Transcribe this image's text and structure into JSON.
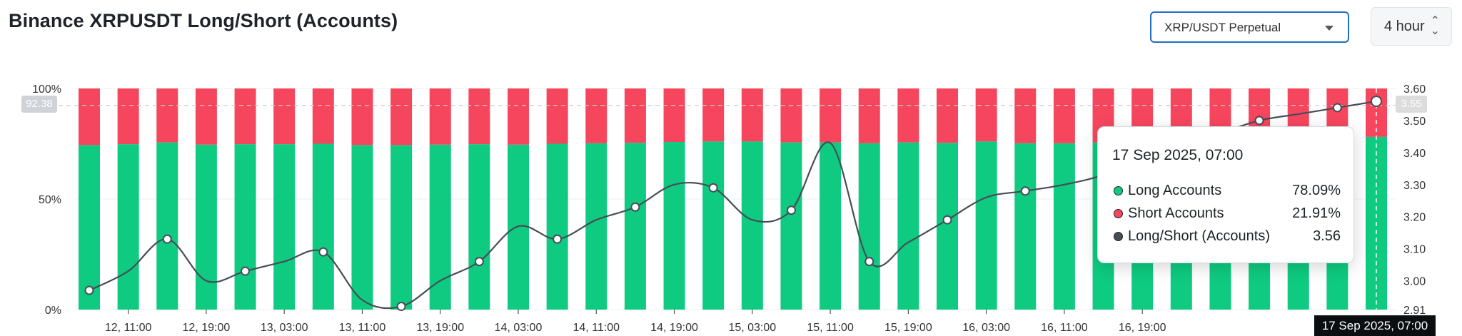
{
  "header": {
    "title": "Binance XRPUSDT Long/Short (Accounts)",
    "contract_select": "XRP/USDT Perpetual",
    "interval_select": "4 hour"
  },
  "colors": {
    "long": "#0ecb81",
    "short": "#f6465d",
    "ratio_line": "#474d57",
    "accent": "#1f6fbf"
  },
  "chart_data": {
    "type": "bar",
    "title": "Binance XRPUSDT Long/Short (Accounts)",
    "stacked": true,
    "left_axis": {
      "ticks": [
        "0%",
        "50%",
        "100%"
      ],
      "range": [
        0,
        100
      ]
    },
    "right_axis": {
      "ticks": [
        "2.91",
        "3.00",
        "3.10",
        "3.20",
        "3.30",
        "3.40",
        "3.50",
        "3.60"
      ],
      "range": [
        2.91,
        3.6
      ]
    },
    "x_tick_labels": [
      "12, 11:00",
      "12, 19:00",
      "13, 03:00",
      "13, 11:00",
      "13, 19:00",
      "14, 03:00",
      "14, 11:00",
      "14, 19:00",
      "15, 03:00",
      "15, 11:00",
      "15, 19:00",
      "16, 03:00",
      "16, 11:00",
      "16, 19:00",
      "17 Sep 2025, 07:00"
    ],
    "series": [
      {
        "name": "Long Accounts",
        "values": [
          74.4,
          74.8,
          75.6,
          74.6,
          74.8,
          74.8,
          75.0,
          74.4,
          74.4,
          74.6,
          74.8,
          74.6,
          75.0,
          75.2,
          75.4,
          75.8,
          76.0,
          76.0,
          75.6,
          75.6,
          75.2,
          75.6,
          75.4,
          76.0,
          75.2,
          75.2,
          75.6,
          76.0,
          76.0,
          76.0,
          76.0,
          76.0,
          76.0,
          78.09
        ]
      },
      {
        "name": "Short Accounts",
        "values": [
          25.6,
          25.2,
          24.4,
          25.4,
          25.2,
          25.2,
          25.0,
          25.6,
          25.6,
          25.4,
          25.2,
          25.4,
          25.0,
          24.8,
          24.6,
          24.2,
          24.0,
          24.0,
          24.4,
          24.4,
          24.8,
          24.4,
          24.6,
          24.0,
          24.8,
          24.8,
          24.4,
          24.0,
          24.0,
          24.0,
          24.0,
          24.0,
          24.0,
          21.91
        ]
      },
      {
        "name": "Long/Short (Accounts)",
        "values": [
          2.97,
          3.03,
          3.13,
          3.0,
          3.03,
          3.06,
          3.09,
          2.94,
          2.92,
          3.0,
          3.06,
          3.17,
          3.13,
          3.19,
          3.23,
          3.3,
          3.29,
          3.19,
          3.22,
          3.43,
          3.06,
          3.12,
          3.19,
          3.26,
          3.28,
          3.3,
          3.33,
          3.38,
          3.42,
          3.46,
          3.5,
          3.52,
          3.54,
          3.56
        ]
      }
    ],
    "crosshair": {
      "left_value": "92.38",
      "right_value": "3.55"
    }
  },
  "tooltip": {
    "title": "17 Sep 2025, 07:00",
    "rows": [
      {
        "label": "Long Accounts",
        "value": "78.09%",
        "color": "#0ecb81"
      },
      {
        "label": "Short Accounts",
        "value": "21.91%",
        "color": "#f6465d"
      },
      {
        "label": "Long/Short (Accounts)",
        "value": "3.56",
        "color": "#474d57"
      }
    ]
  }
}
